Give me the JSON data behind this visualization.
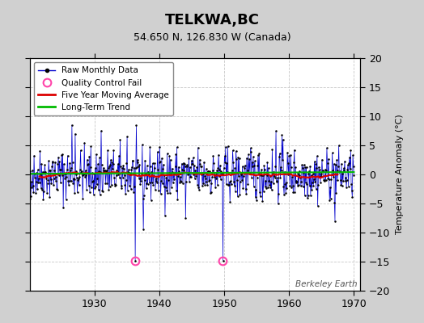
{
  "title": "TELKWA,BC",
  "subtitle": "54.650 N, 126.830 W (Canada)",
  "ylabel": "Temperature Anomaly (°C)",
  "xlim": [
    1920,
    1971
  ],
  "ylim": [
    -20,
    20
  ],
  "yticks": [
    -20,
    -15,
    -10,
    -5,
    0,
    5,
    10,
    15,
    20
  ],
  "xticks": [
    1930,
    1940,
    1950,
    1960,
    1970
  ],
  "fig_bg_color": "#d0d0d0",
  "plot_bg_color": "#ffffff",
  "grid_color": "#c8c8c8",
  "raw_line_color": "#0000cc",
  "raw_dot_color": "#000000",
  "ma_color": "#dd0000",
  "trend_color": "#00bb00",
  "qc_fail_color": "#ff44aa",
  "watermark": "Berkeley Earth",
  "seed": 42,
  "n_points": 612,
  "start_year": 1919.0,
  "end_year": 1970.0,
  "qc_fail_points": [
    [
      1936.25,
      -14.8
    ],
    [
      1949.75,
      -14.8
    ]
  ]
}
